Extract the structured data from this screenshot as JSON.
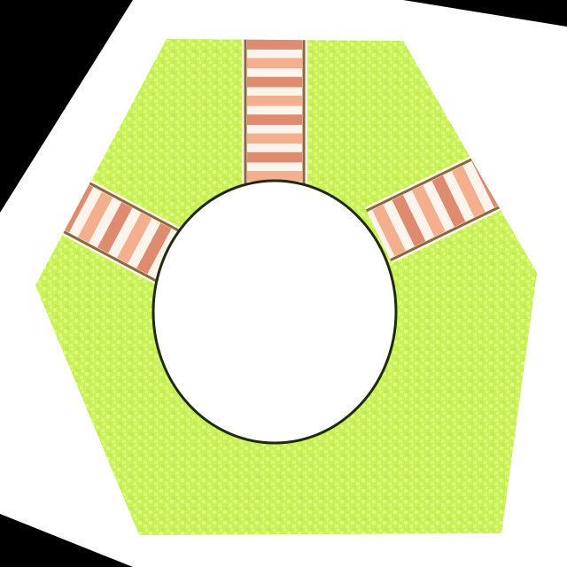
{
  "colors": {
    "background": "#000000",
    "card": "#ffffff",
    "terrain_light": "#e8ff8a",
    "terrain": "#c9f25a",
    "terrain_dark": "#b3e043",
    "track_sleeper": "#f2a27e",
    "track_sleeper_dark": "#d9785a",
    "track_rail": "#8a6a3a",
    "hole": "#ffffff",
    "hole_outline": "#1f2a10"
  },
  "tile": {
    "shape": "hexagon",
    "terrain": "grass",
    "center_feature": "empty-circle",
    "track_exits": [
      "top",
      "upper-left",
      "upper-right"
    ]
  }
}
